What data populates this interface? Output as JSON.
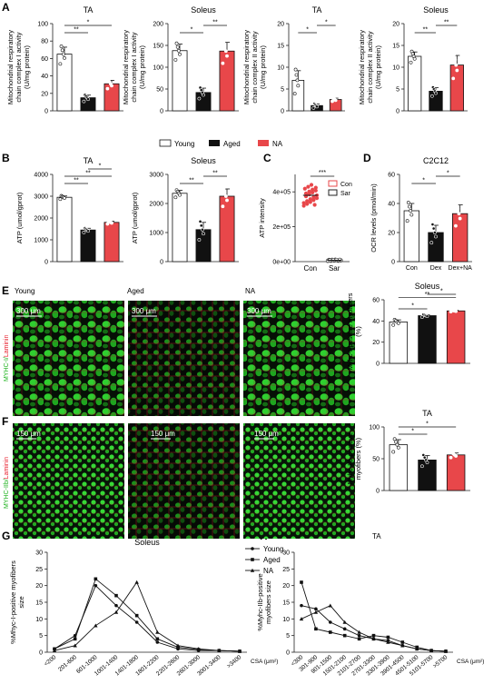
{
  "panels": {
    "A": "A",
    "B": "B",
    "C": "C",
    "D": "D",
    "E": "E",
    "F": "F",
    "G": "G",
    "H": "H"
  },
  "colors": {
    "young": "#ffffff",
    "aged": "#111111",
    "na": "#e8474a",
    "con": "#e8474a",
    "sar": "#222222",
    "green": "#2fd42f",
    "laminin": "#e81b2a"
  },
  "legend_a": {
    "young": "Young",
    "aged": "Aged",
    "na": "NA"
  },
  "chart_data": [
    {
      "id": "A1",
      "type": "bar",
      "title": "TA",
      "ylabel": "Mitochondrial respiratory chain complex I activity (U/mg protein)",
      "categories": [
        "Young",
        "Aged",
        "NA"
      ],
      "values": [
        65,
        15,
        31
      ],
      "errors": [
        8,
        3,
        4
      ],
      "ylim": [
        0,
        100
      ],
      "yticks": [
        0,
        20,
        40,
        60,
        80,
        100
      ],
      "sig": [
        {
          "a": 0,
          "b": 1,
          "label": "**"
        },
        {
          "a": 0,
          "b": 2,
          "label": "*"
        }
      ]
    },
    {
      "id": "A2",
      "type": "bar",
      "title": "Soleus",
      "ylabel": "Mitochondrial respiratory chain complex I activity (U/mg protein)",
      "categories": [
        "Young",
        "Aged",
        "NA"
      ],
      "values": [
        138,
        42,
        137
      ],
      "errors": [
        15,
        10,
        20
      ],
      "ylim": [
        0,
        200
      ],
      "yticks": [
        0,
        50,
        100,
        150,
        200
      ],
      "sig": [
        {
          "a": 0,
          "b": 1,
          "label": "*"
        },
        {
          "a": 1,
          "b": 2,
          "label": "**"
        }
      ]
    },
    {
      "id": "A3",
      "type": "bar",
      "title": "TA",
      "ylabel": "Mitochondrial respiratory chain complex II activity (U/mg protein)",
      "categories": [
        "Young",
        "Aged",
        "NA"
      ],
      "values": [
        7,
        1.2,
        2.6
      ],
      "errors": [
        2.2,
        0.4,
        0.3
      ],
      "ylim": [
        0,
        20
      ],
      "yticks": [
        0,
        5,
        10,
        15,
        20
      ],
      "sig": [
        {
          "a": 0,
          "b": 1,
          "label": "*"
        },
        {
          "a": 1,
          "b": 2,
          "label": "*"
        }
      ]
    },
    {
      "id": "A4",
      "type": "bar",
      "title": "Soleus",
      "ylabel": "Mitochondrial respiratory chain complex II activity (U/mg protein)",
      "categories": [
        "Young",
        "Aged",
        "NA"
      ],
      "values": [
        12.5,
        4.5,
        10.5
      ],
      "errors": [
        1,
        0.8,
        2.2
      ],
      "ylim": [
        0,
        20
      ],
      "yticks": [
        0,
        5,
        10,
        15,
        20
      ],
      "sig": [
        {
          "a": 0,
          "b": 1,
          "label": "**"
        },
        {
          "a": 1,
          "b": 2,
          "label": "**"
        }
      ]
    },
    {
      "id": "B1",
      "type": "bar",
      "title": "TA",
      "ylabel": "ATP (umol/gprot)",
      "categories": [
        "Young",
        "Aged",
        "NA"
      ],
      "values": [
        2950,
        1450,
        1800
      ],
      "errors": [
        60,
        80,
        50
      ],
      "ylim": [
        0,
        4000
      ],
      "yticks": [
        0,
        1000,
        2000,
        3000,
        4000
      ],
      "sig": [
        {
          "a": 0,
          "b": 1,
          "label": "**"
        },
        {
          "a": 0,
          "b": 2,
          "label": "**"
        },
        {
          "a": 1,
          "b": 2,
          "label": "*"
        }
      ]
    },
    {
      "id": "B2",
      "type": "bar",
      "title": "Soleus",
      "ylabel": "ATP (umol/gprot)",
      "categories": [
        "Young",
        "Aged",
        "NA"
      ],
      "values": [
        2350,
        1100,
        2250
      ],
      "errors": [
        100,
        250,
        250
      ],
      "ylim": [
        0,
        3000
      ],
      "yticks": [
        0,
        1000,
        2000,
        3000
      ],
      "sig": [
        {
          "a": 0,
          "b": 1,
          "label": "**"
        },
        {
          "a": 1,
          "b": 2,
          "label": "**"
        }
      ]
    },
    {
      "id": "C",
      "type": "scatter",
      "title": "",
      "ylabel": "ATP intensity",
      "categories": [
        "Con",
        "Sar"
      ],
      "legend": [
        "Con",
        "Sar"
      ],
      "values": [
        380000,
        8000
      ],
      "ylim": [
        0,
        500000
      ],
      "yticklabels": [
        "0e+00",
        "2e+05",
        "4e+05"
      ],
      "yticks": [
        0,
        200000,
        400000
      ],
      "sig": [
        {
          "a": 0,
          "b": 1,
          "label": "***"
        }
      ]
    },
    {
      "id": "D",
      "type": "bar",
      "title": "C2C12",
      "ylabel": "OCR levels (pmol/min)",
      "categories": [
        "Con",
        "Dex",
        "Dex+NA"
      ],
      "values": [
        35,
        20,
        33
      ],
      "errors": [
        5,
        5,
        6
      ],
      "ylim": [
        0,
        60
      ],
      "yticks": [
        0,
        20,
        40,
        60
      ],
      "sig": [
        {
          "a": 0,
          "b": 1,
          "label": "*"
        },
        {
          "a": 1,
          "b": 2,
          "label": "*"
        }
      ]
    },
    {
      "id": "E",
      "type": "bar",
      "title": "Soleus",
      "ylabel": "Myhc-I-positive myofibers (%)",
      "categories": [
        "Young",
        "Aged",
        "NA"
      ],
      "values": [
        39,
        45,
        49.5
      ],
      "errors": [
        2,
        1,
        0.5
      ],
      "ylim": [
        0,
        60
      ],
      "yticks": [
        0,
        20,
        40,
        60
      ],
      "sig": [
        {
          "a": 0,
          "b": 1,
          "label": "*"
        },
        {
          "a": 0,
          "b": 2,
          "label": "**"
        },
        {
          "a": 1,
          "b": 2,
          "label": "*"
        }
      ]
    },
    {
      "id": "F",
      "type": "bar",
      "title": "TA",
      "ylabel": "Myhc-IIb-positive myofibers (%)",
      "categories": [
        "Young",
        "Aged",
        "NA"
      ],
      "values": [
        72,
        48,
        56
      ],
      "errors": [
        8,
        7,
        3
      ],
      "ylim": [
        0,
        100
      ],
      "yticks": [
        0,
        50,
        100
      ],
      "sig": [
        {
          "a": 0,
          "b": 1,
          "label": "*"
        },
        {
          "a": 0,
          "b": 2,
          "label": "*"
        }
      ]
    },
    {
      "id": "G",
      "type": "line",
      "title": "Soleus",
      "xlabel": "CSA (μm²)",
      "ylabel": "%Mhyc-I-positive myofibers size",
      "categories": [
        "<200",
        "201-600",
        "601-1000",
        "1001-1400",
        "1401-1800",
        "1801-2200",
        "2201-2600",
        "2601-3000",
        "3001-3400",
        ">3400"
      ],
      "ylim": [
        0,
        30
      ],
      "yticks": [
        0,
        5,
        10,
        15,
        20,
        25,
        30
      ],
      "series": [
        {
          "name": "Young",
          "values": [
            1,
            5,
            20,
            14,
            9,
            3,
            1,
            0.5,
            0.5,
            0.3
          ]
        },
        {
          "name": "Aged",
          "values": [
            1,
            4,
            22,
            17,
            11,
            4,
            1.5,
            0.8,
            0.5,
            0.3
          ]
        },
        {
          "name": "NA",
          "values": [
            0.5,
            2,
            8,
            12,
            21,
            6,
            2,
            1,
            0.5,
            0.3
          ]
        }
      ]
    },
    {
      "id": "H",
      "type": "line",
      "title": "",
      "xlabel": "CSA (μm²)",
      "ylabel": "%Myhc-IIb-positive myofibers size",
      "categories": [
        "<300",
        "301-900",
        "901-1500",
        "1501-2100",
        "2101-2700",
        "2701-3300",
        "3301-3900",
        "3901-4500",
        "4501-5100",
        "5101-5700",
        ">5700"
      ],
      "ylim": [
        0,
        30
      ],
      "yticks": [
        0,
        5,
        10,
        15,
        20,
        25,
        30
      ],
      "series": [
        {
          "name": "Young",
          "values": [
            14,
            13,
            9,
            7,
            5,
            4,
            3.5,
            2,
            1,
            0.5,
            0.3
          ]
        },
        {
          "name": "Aged",
          "values": [
            21,
            7,
            6,
            5,
            4,
            5,
            4.5,
            3,
            1.5,
            0.5,
            0.3
          ]
        },
        {
          "name": "NA",
          "values": [
            10,
            12,
            14,
            9,
            6,
            4,
            3,
            2,
            1,
            0.5,
            0.3
          ]
        }
      ]
    }
  ],
  "micro": {
    "E": {
      "label_left": "MYHC-I",
      "label_right": "Laminin",
      "cols": [
        "Young",
        "Aged",
        "NA"
      ],
      "scale": [
        "300 μm",
        "300 μm",
        "300 μm"
      ]
    },
    "F": {
      "label_left": "MYHC-IIb",
      "label_right": "Laminin",
      "scale": [
        "150 μm",
        "150 μm",
        "150 μm"
      ]
    }
  },
  "stray": {
    "ta_below_F": "TA"
  }
}
